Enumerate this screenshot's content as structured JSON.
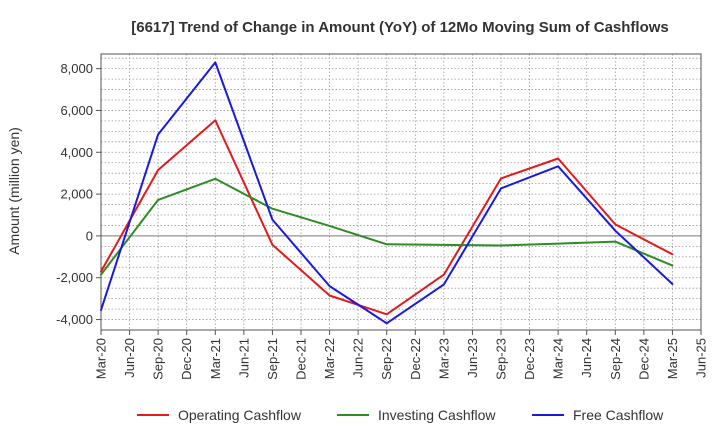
{
  "chart_data": {
    "type": "line",
    "title": "[6617]  Trend of Change in Amount (YoY) of 12Mo Moving Sum of Cashflows",
    "xlabel": "",
    "ylabel": "Amount (million yen)",
    "categories": [
      "Mar-20",
      "Jun-20",
      "Sep-20",
      "Dec-20",
      "Mar-21",
      "Jun-21",
      "Sep-21",
      "Dec-21",
      "Mar-22",
      "Jun-22",
      "Sep-22",
      "Dec-22",
      "Mar-23",
      "Jun-23",
      "Sep-23",
      "Dec-23",
      "Mar-24",
      "Jun-24",
      "Sep-24",
      "Dec-24",
      "Mar-25",
      "Jun-25"
    ],
    "yticks": [
      -4000,
      -2000,
      0,
      2000,
      4000,
      6000,
      8000
    ],
    "ytick_labels": [
      "-4,000",
      "-2,000",
      "0",
      "2,000",
      "4,000",
      "6,000",
      "8,000"
    ],
    "ylim": [
      -4500,
      8700
    ],
    "grid": true,
    "legend_position": "bottom",
    "series": [
      {
        "name": "Operating Cashflow",
        "color": "#e41a1c",
        "points": [
          [
            0,
            -1700
          ],
          [
            2,
            3150
          ],
          [
            4,
            5530
          ],
          [
            6,
            -420
          ],
          [
            8,
            -2850
          ],
          [
            10,
            -3750
          ],
          [
            12,
            -1850
          ],
          [
            14,
            2750
          ],
          [
            16,
            3700
          ],
          [
            18,
            550
          ],
          [
            20,
            -880
          ]
        ]
      },
      {
        "name": "Investing Cashflow",
        "color": "#2e8b25",
        "points": [
          [
            0,
            -1850
          ],
          [
            2,
            1720
          ],
          [
            4,
            2730
          ],
          [
            6,
            1300
          ],
          [
            8,
            480
          ],
          [
            10,
            -400
          ],
          [
            12,
            -430
          ],
          [
            14,
            -460
          ],
          [
            16,
            -370
          ],
          [
            18,
            -270
          ],
          [
            20,
            -1420
          ]
        ]
      },
      {
        "name": "Free Cashflow",
        "color": "#1a1adf",
        "points": [
          [
            0,
            -3550
          ],
          [
            2,
            4850
          ],
          [
            4,
            8300
          ],
          [
            6,
            780
          ],
          [
            8,
            -2400
          ],
          [
            10,
            -4180
          ],
          [
            12,
            -2320
          ],
          [
            14,
            2270
          ],
          [
            16,
            3330
          ],
          [
            18,
            250
          ],
          [
            20,
            -2300
          ]
        ]
      }
    ]
  }
}
